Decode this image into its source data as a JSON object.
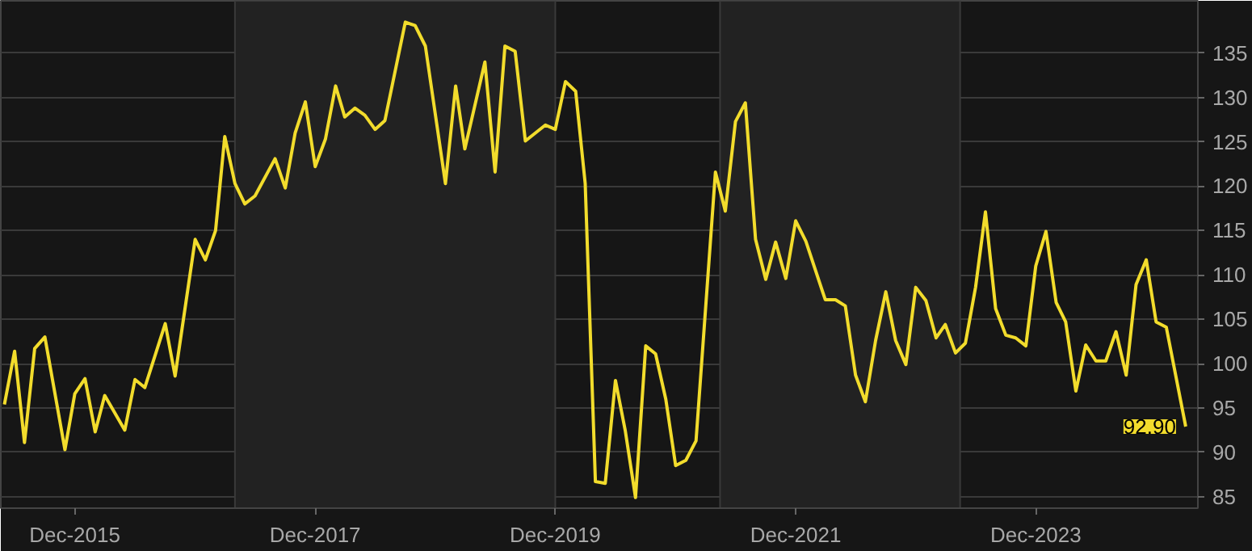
{
  "chart_data": {
    "type": "line",
    "x": [
      "2015-05",
      "2015-06",
      "2015-07",
      "2015-08",
      "2015-09",
      "2015-11",
      "2015-12",
      "2016-01",
      "2016-02",
      "2016-03",
      "2016-05",
      "2016-06",
      "2016-07",
      "2016-09",
      "2016-10",
      "2016-12",
      "2017-01",
      "2017-02",
      "2017-03",
      "2017-04",
      "2017-05",
      "2017-06",
      "2017-08",
      "2017-09",
      "2017-10",
      "2017-11",
      "2017-12",
      "2018-01",
      "2018-02",
      "2018-03",
      "2018-04",
      "2018-05",
      "2018-06",
      "2018-07",
      "2018-09",
      "2018-10",
      "2018-11",
      "2019-01",
      "2019-02",
      "2019-03",
      "2019-05",
      "2019-06",
      "2019-07",
      "2019-08",
      "2019-09",
      "2019-11",
      "2019-12",
      "2020-01",
      "2020-02",
      "2020-03",
      "2020-04",
      "2020-05",
      "2020-06",
      "2020-07",
      "2020-08",
      "2020-09",
      "2020-10",
      "2020-11",
      "2020-12",
      "2021-01",
      "2021-02",
      "2021-04",
      "2021-05",
      "2021-06",
      "2021-07",
      "2021-08",
      "2021-09",
      "2021-10",
      "2021-11",
      "2021-12",
      "2022-01",
      "2022-03",
      "2022-04",
      "2022-05",
      "2022-06",
      "2022-07",
      "2022-08",
      "2022-09",
      "2022-10",
      "2022-11",
      "2022-12",
      "2023-01",
      "2023-02",
      "2023-03",
      "2023-04",
      "2023-05",
      "2023-06",
      "2023-07",
      "2023-08",
      "2023-09",
      "2023-10",
      "2023-11",
      "2023-12",
      "2024-01",
      "2024-02",
      "2024-03",
      "2024-04",
      "2024-05",
      "2024-06",
      "2024-07",
      "2024-08",
      "2024-09",
      "2024-10",
      "2024-11",
      "2024-12",
      "2025-01",
      "2025-03"
    ],
    "series": [
      {
        "color": "#f2dc2c",
        "values": [
          95.4,
          101.4,
          91.1,
          101.7,
          103.0,
          90.3,
          96.6,
          98.3,
          92.3,
          96.4,
          92.5,
          98.2,
          97.3,
          104.5,
          98.6,
          114.0,
          111.7,
          115.0,
          125.6,
          120.3,
          118.0,
          118.9,
          123.1,
          119.8,
          126.0,
          129.5,
          122.2,
          125.3,
          131.3,
          127.8,
          128.8,
          128.0,
          126.4,
          127.4,
          138.5,
          138.1,
          135.8,
          120.3,
          131.3,
          124.2,
          134.0,
          121.6,
          135.8,
          135.2,
          125.1,
          126.9,
          126.4,
          131.8,
          130.7,
          120.3,
          86.7,
          86.5,
          98.1,
          92.4,
          84.9,
          102.0,
          101.1,
          96.0,
          88.5,
          89.1,
          91.3,
          121.6,
          117.2,
          127.3,
          129.4,
          114.0,
          109.5,
          113.7,
          109.6,
          116.1,
          113.8,
          107.2,
          107.2,
          106.5,
          98.7,
          95.7,
          102.6,
          108.1,
          102.6,
          99.9,
          108.6,
          107.1,
          102.9,
          104.4,
          101.2,
          102.3,
          108.6,
          117.1,
          106.2,
          103.2,
          102.9,
          102.0,
          111.0,
          114.9,
          106.9,
          104.7,
          96.9,
          102.1,
          100.3,
          100.3,
          103.6,
          98.7,
          108.9,
          111.7,
          104.7,
          104.1,
          92.9
        ]
      }
    ],
    "xlim": [
      "2015-04-20",
      "2025-04-07"
    ],
    "xticks": [
      {
        "value": "2015-12",
        "label": "Dec-2015"
      },
      {
        "value": "2017-12",
        "label": "Dec-2017"
      },
      {
        "value": "2019-12",
        "label": "Dec-2019"
      },
      {
        "value": "2021-12",
        "label": "Dec-2021"
      },
      {
        "value": "2023-12",
        "label": "Dec-2023"
      }
    ],
    "ylim": [
      83.7,
      140.9
    ],
    "yticks": [
      85,
      90,
      95,
      100,
      105,
      110,
      115,
      120,
      125,
      130,
      135
    ],
    "grid": "y",
    "bands": [
      {
        "axis": "x",
        "from": "2017-04",
        "to": "2019-12",
        "color": "#222222"
      },
      {
        "axis": "x",
        "from": "2021-04-15",
        "to": "2023-04-15",
        "color": "#222222"
      }
    ],
    "annotations": [
      {
        "text": "92.90",
        "x": "2025-03",
        "y": 92.9
      }
    ],
    "line_style": "solid",
    "marker": "none"
  }
}
